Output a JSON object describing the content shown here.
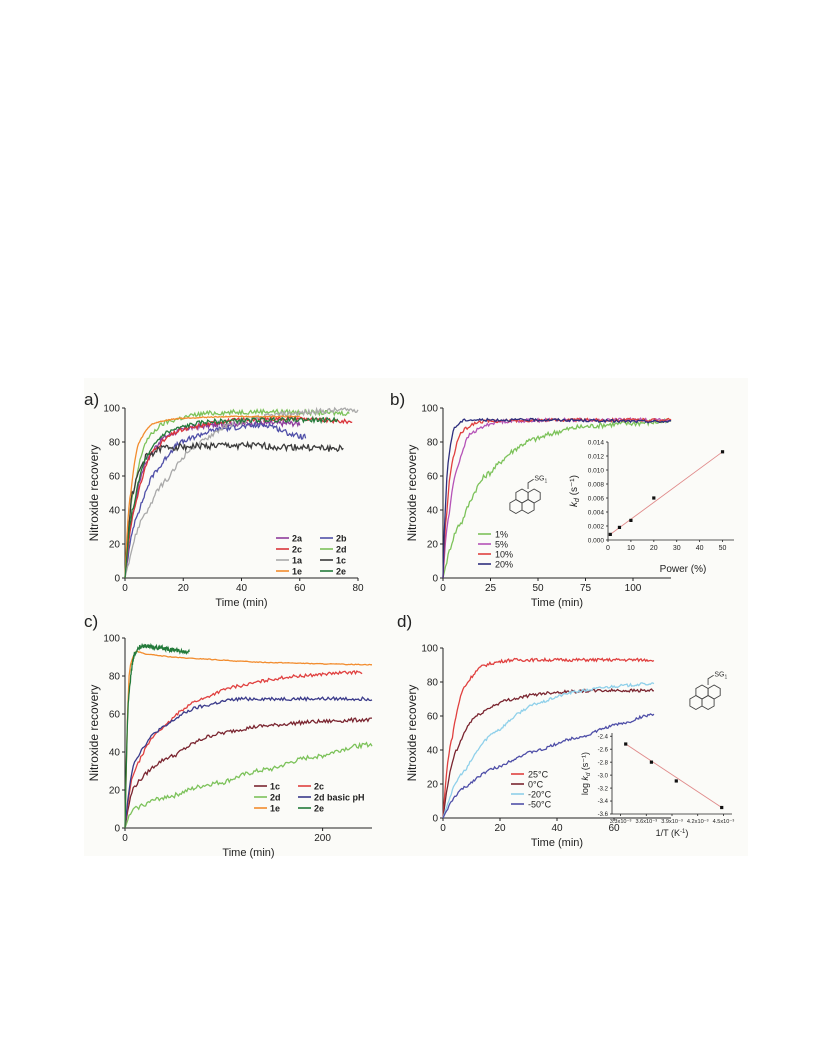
{
  "chart_data": [
    {
      "panel_label": "a)",
      "type": "line",
      "xlabel": "Time (min)",
      "ylabel": "Nitroxide recovery",
      "xlim": [
        0,
        80
      ],
      "ylim": [
        0,
        100
      ],
      "xticks": [
        0,
        20,
        40,
        60,
        80
      ],
      "yticks": [
        0,
        20,
        40,
        60,
        80,
        100
      ],
      "legend": {
        "placement": "bottom-right",
        "columns": 2,
        "bold": true
      },
      "series": [
        {
          "name": "2a",
          "color": "#8e3c9c",
          "tmax": 60,
          "plateau": 91,
          "tau": 8,
          "noise": 1.6,
          "points": [
            [
              0,
              0
            ],
            [
              3,
              40
            ],
            [
              8,
              70
            ],
            [
              15,
              84
            ],
            [
              25,
              89
            ],
            [
              40,
              91
            ],
            [
              60,
              91
            ]
          ]
        },
        {
          "name": "2b",
          "color": "#4f4fa8",
          "tmax": 62,
          "plateau": 88,
          "tau": 12,
          "noise": 1.5,
          "points": [
            [
              0,
              0
            ],
            [
              5,
              40
            ],
            [
              12,
              65
            ],
            [
              20,
              80
            ],
            [
              35,
              88
            ],
            [
              50,
              90
            ],
            [
              62,
              83
            ]
          ]
        },
        {
          "name": "2c",
          "color": "#d9343a",
          "tmax": 78,
          "plateau": 94,
          "tau": 9,
          "noise": 1.2,
          "points": [
            [
              0,
              0
            ],
            [
              4,
              45
            ],
            [
              10,
              75
            ],
            [
              20,
              87
            ],
            [
              40,
              93
            ],
            [
              60,
              94
            ],
            [
              78,
              92
            ]
          ]
        },
        {
          "name": "2d",
          "color": "#7cc25a",
          "tmax": 77,
          "plateau": 97,
          "tau": 6,
          "noise": 1.4,
          "points": [
            [
              0,
              0
            ],
            [
              3,
              50
            ],
            [
              8,
              82
            ],
            [
              15,
              92
            ],
            [
              30,
              97
            ],
            [
              50,
              98
            ],
            [
              77,
              97
            ]
          ]
        },
        {
          "name": "1a",
          "color": "#a9a9a9",
          "tmax": 80,
          "plateau": 98,
          "tau": 16,
          "noise": 1.6,
          "points": [
            [
              0,
              0
            ],
            [
              8,
              40
            ],
            [
              15,
              58
            ],
            [
              25,
              78
            ],
            [
              40,
              92
            ],
            [
              60,
              97
            ],
            [
              80,
              99
            ]
          ]
        },
        {
          "name": "1c",
          "color": "#3a3a3a",
          "tmax": 75,
          "plateau": 77,
          "tau": 5,
          "noise": 2.0,
          "points": [
            [
              0,
              0
            ],
            [
              3,
              52
            ],
            [
              8,
              72
            ],
            [
              15,
              77
            ],
            [
              40,
              78
            ],
            [
              60,
              77
            ],
            [
              75,
              76
            ]
          ]
        },
        {
          "name": "1e",
          "color": "#f28c2e",
          "tmax": 60,
          "plateau": 95,
          "tau": 4,
          "noise": 0.3,
          "points": [
            [
              0,
              0
            ],
            [
              2,
              50
            ],
            [
              5,
              80
            ],
            [
              10,
              91
            ],
            [
              20,
              94
            ],
            [
              40,
              95
            ],
            [
              60,
              95
            ]
          ]
        },
        {
          "name": "2e",
          "color": "#237a3a",
          "tmax": 73,
          "plateau": 93,
          "tau": 7,
          "noise": 1.3,
          "points": [
            [
              0,
              0
            ],
            [
              3,
              42
            ],
            [
              8,
              72
            ],
            [
              15,
              86
            ],
            [
              30,
              92
            ],
            [
              50,
              93
            ],
            [
              73,
              93
            ]
          ]
        }
      ]
    },
    {
      "panel_label": "b)",
      "type": "line",
      "xlabel": "Time (min)",
      "ylabel": "Nitroxide recovery",
      "xlim": [
        0,
        120
      ],
      "ylim": [
        0,
        100
      ],
      "xticks": [
        0,
        25,
        50,
        75,
        100
      ],
      "yticks": [
        0,
        20,
        40,
        60,
        80,
        100
      ],
      "legend": {
        "placement": "bottom-left-center"
      },
      "structure_label": "SG1",
      "series": [
        {
          "name": "1%",
          "color": "#7cc25a",
          "tmax": 120,
          "plateau": 93,
          "tau": 30,
          "noise": 1.6,
          "points": [
            [
              0,
              0
            ],
            [
              10,
              33
            ],
            [
              25,
              62
            ],
            [
              50,
              82
            ],
            [
              75,
              89
            ],
            [
              100,
              91
            ],
            [
              120,
              92
            ]
          ]
        },
        {
          "name": "5%",
          "color": "#b553b7",
          "tmax": 120,
          "plateau": 93,
          "tau": 8,
          "noise": 1.0,
          "points": [
            [
              0,
              0
            ],
            [
              3,
              35
            ],
            [
              8,
              66
            ],
            [
              15,
              85
            ],
            [
              30,
              92
            ],
            [
              60,
              93
            ],
            [
              120,
              93
            ]
          ]
        },
        {
          "name": "10%",
          "color": "#e0403f",
          "tmax": 120,
          "plateau": 93,
          "tau": 5,
          "noise": 0.9,
          "points": [
            [
              0,
              0
            ],
            [
              2,
              38
            ],
            [
              5,
              68
            ],
            [
              10,
              86
            ],
            [
              20,
              92
            ],
            [
              60,
              93
            ],
            [
              120,
              93
            ]
          ]
        },
        {
          "name": "20%",
          "color": "#2f2f7e",
          "tmax": 120,
          "plateau": 93,
          "tau": 3,
          "noise": 0.8,
          "points": [
            [
              0,
              0
            ],
            [
              1,
              33
            ],
            [
              3,
              70
            ],
            [
              6,
              88
            ],
            [
              12,
              93
            ],
            [
              60,
              93
            ],
            [
              120,
              92
            ]
          ]
        }
      ],
      "inset": {
        "type": "scatter",
        "xlabel": "Power (%)",
        "ylabel": "k_d (s⁻¹)",
        "ylabel_main": "k",
        "ylabel_sub": "d",
        "ylabel_unit": " (s⁻¹)",
        "xlim": [
          0,
          55
        ],
        "ylim": [
          0,
          0.014
        ],
        "xticks": [
          0,
          10,
          20,
          30,
          40,
          50
        ],
        "yticks": [
          "0.000",
          "0.002",
          "0.004",
          "0.006",
          "0.008",
          "0.010",
          "0.012",
          "0.014"
        ],
        "points": [
          [
            1,
            0.0008
          ],
          [
            5,
            0.0018
          ],
          [
            10,
            0.0028
          ],
          [
            20,
            0.006
          ],
          [
            50,
            0.0126
          ]
        ],
        "fit": [
          [
            1,
            0.0008
          ],
          [
            50,
            0.0126
          ]
        ]
      }
    },
    {
      "panel_label": "c)",
      "type": "line",
      "xlabel": "Time (min)",
      "ylabel": "Nitroxide recovery",
      "xlim": [
        0,
        250
      ],
      "ylim": [
        0,
        100
      ],
      "xticks": [
        0,
        200
      ],
      "yticks": [
        0,
        20,
        40,
        60,
        80,
        100
      ],
      "legend": {
        "placement": "bottom-right",
        "columns": 2,
        "bold": true
      },
      "series": [
        {
          "name": "1c",
          "color": "#7a2530",
          "tmax": 250,
          "noise": 1.0,
          "points": [
            [
              0,
              0
            ],
            [
              10,
              22
            ],
            [
              50,
              38
            ],
            [
              100,
              50
            ],
            [
              150,
              54
            ],
            [
              200,
              56
            ],
            [
              250,
              57
            ]
          ]
        },
        {
          "name": "2c",
          "color": "#e0403f",
          "tmax": 240,
          "noise": 0.8,
          "points": [
            [
              0,
              0
            ],
            [
              10,
              30
            ],
            [
              40,
              53
            ],
            [
              80,
              68
            ],
            [
              120,
              75
            ],
            [
              180,
              80
            ],
            [
              240,
              82
            ]
          ]
        },
        {
          "name": "2d",
          "color": "#7cc25a",
          "tmax": 250,
          "noise": 1.2,
          "points": [
            [
              0,
              0
            ],
            [
              10,
              10
            ],
            [
              50,
              17
            ],
            [
              100,
              24
            ],
            [
              150,
              31
            ],
            [
              200,
              38
            ],
            [
              250,
              44
            ]
          ]
        },
        {
          "name": "2d basic pH",
          "color": "#3a3a8a",
          "tmax": 250,
          "noise": 0.9,
          "points": [
            [
              0,
              0
            ],
            [
              10,
              35
            ],
            [
              40,
              53
            ],
            [
              80,
              64
            ],
            [
              120,
              68
            ],
            [
              180,
              68
            ],
            [
              250,
              68
            ]
          ]
        },
        {
          "name": "1e",
          "color": "#f28c2e",
          "tmax": 250,
          "noise": 0.2,
          "points": [
            [
              0,
              0
            ],
            [
              5,
              85
            ],
            [
              12,
              93
            ],
            [
              30,
              91
            ],
            [
              80,
              89
            ],
            [
              160,
              87
            ],
            [
              250,
              86
            ]
          ]
        },
        {
          "name": "2e",
          "color": "#237a3a",
          "tmax": 65,
          "noise": 1.1,
          "points": [
            [
              0,
              0
            ],
            [
              4,
              70
            ],
            [
              10,
              92
            ],
            [
              18,
              96
            ],
            [
              35,
              95
            ],
            [
              65,
              93
            ]
          ]
        }
      ]
    },
    {
      "panel_label": "d)",
      "type": "line",
      "xlabel": "Time (min)",
      "ylabel": "Nitroxide recovery",
      "xlim": [
        0,
        80
      ],
      "ylim": [
        0,
        100
      ],
      "xticks": [
        0,
        20,
        40,
        60
      ],
      "yticks": [
        0,
        20,
        40,
        60,
        80,
        100
      ],
      "legend": {
        "placement": "bottom-center"
      },
      "structure_label": "SG1",
      "series": [
        {
          "name": "25°C",
          "color": "#e0403f",
          "tmax": 74,
          "noise": 0.9,
          "points": [
            [
              0,
              0
            ],
            [
              3,
              45
            ],
            [
              8,
              78
            ],
            [
              15,
              90
            ],
            [
              25,
              93
            ],
            [
              50,
              93
            ],
            [
              74,
              93
            ]
          ]
        },
        {
          "name": "0°C",
          "color": "#7a2530",
          "tmax": 74,
          "noise": 0.9,
          "points": [
            [
              0,
              0
            ],
            [
              5,
              40
            ],
            [
              12,
              60
            ],
            [
              25,
              70
            ],
            [
              40,
              74
            ],
            [
              60,
              75
            ],
            [
              74,
              75
            ]
          ]
        },
        {
          "name": "-20°C",
          "color": "#8fd0ea",
          "tmax": 74,
          "noise": 0.8,
          "points": [
            [
              0,
              0
            ],
            [
              8,
              28
            ],
            [
              20,
              52
            ],
            [
              35,
              68
            ],
            [
              50,
              75
            ],
            [
              65,
              78
            ],
            [
              74,
              79
            ]
          ]
        },
        {
          "name": "-50°C",
          "color": "#4f4fa8",
          "tmax": 74,
          "noise": 0.8,
          "points": [
            [
              0,
              0
            ],
            [
              8,
              18
            ],
            [
              20,
              30
            ],
            [
              35,
              40
            ],
            [
              50,
              48
            ],
            [
              65,
              56
            ],
            [
              74,
              61
            ]
          ]
        }
      ],
      "inset": {
        "type": "scatter",
        "xlabel": "1/T (K⁻¹)",
        "xlabel_main": "1/T (K",
        "xlabel_sup": "-1",
        "xlabel_end": ")",
        "ylabel_main": "log k",
        "ylabel_sub": "d",
        "ylabel_unit": " (s⁻¹)",
        "xlim": [
          0.0032,
          0.0046
        ],
        "ylim": [
          -3.6,
          -2.35
        ],
        "xtick_values": [
          0.0033,
          0.0036,
          0.0039,
          0.0042,
          0.0045
        ],
        "xticks": [
          "3.3x10⁻³",
          "3.6x10⁻³",
          "3.9x10⁻³",
          "4.2x10⁻³",
          "4.5x10⁻³"
        ],
        "ytick_values": [
          -2.4,
          -2.6,
          -2.8,
          -3.0,
          -3.2,
          -3.4,
          -3.6
        ],
        "yticks": [
          "-2.4",
          "-2.6",
          "-2.8",
          "-3.0",
          "-3.2",
          "-3.4",
          "-3.6"
        ],
        "points": [
          [
            0.00336,
            -2.52
          ],
          [
            0.00366,
            -2.8
          ],
          [
            0.00395,
            -3.09
          ],
          [
            0.00448,
            -3.5
          ]
        ],
        "fit": [
          [
            0.00336,
            -2.52
          ],
          [
            0.00448,
            -3.5
          ]
        ]
      }
    }
  ]
}
